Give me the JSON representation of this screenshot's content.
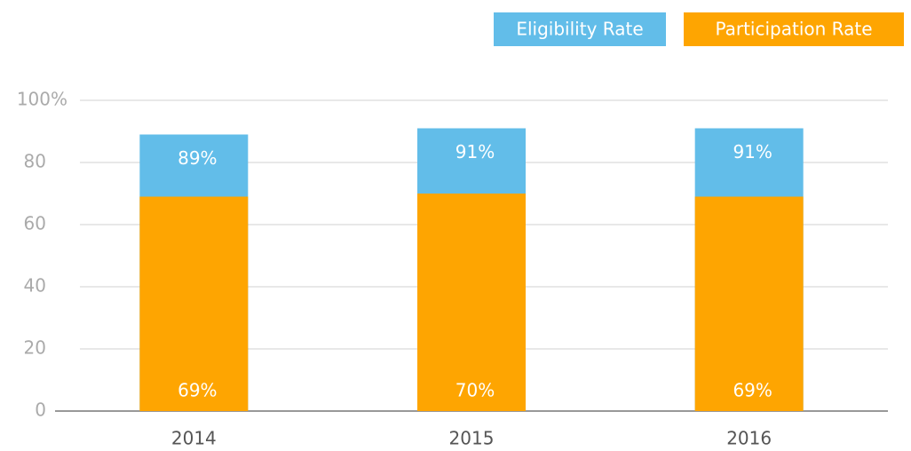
{
  "chart_data": {
    "type": "bar",
    "categories": [
      "2014",
      "2015",
      "2016"
    ],
    "series": [
      {
        "name": "Eligibility Rate",
        "color": "#62bde9",
        "values": [
          89,
          91,
          91
        ],
        "value_labels": [
          "89%",
          "91%",
          "91%"
        ]
      },
      {
        "name": "Participation Rate",
        "color": "#fea501",
        "values": [
          69,
          70,
          69
        ],
        "value_labels": [
          "69%",
          "70%",
          "69%"
        ]
      }
    ],
    "ylim": [
      0,
      100
    ],
    "yticks": [
      0,
      20,
      40,
      60,
      80,
      {
        "value": 100,
        "label": "100%"
      }
    ],
    "grid": true,
    "legend": "top-right"
  }
}
